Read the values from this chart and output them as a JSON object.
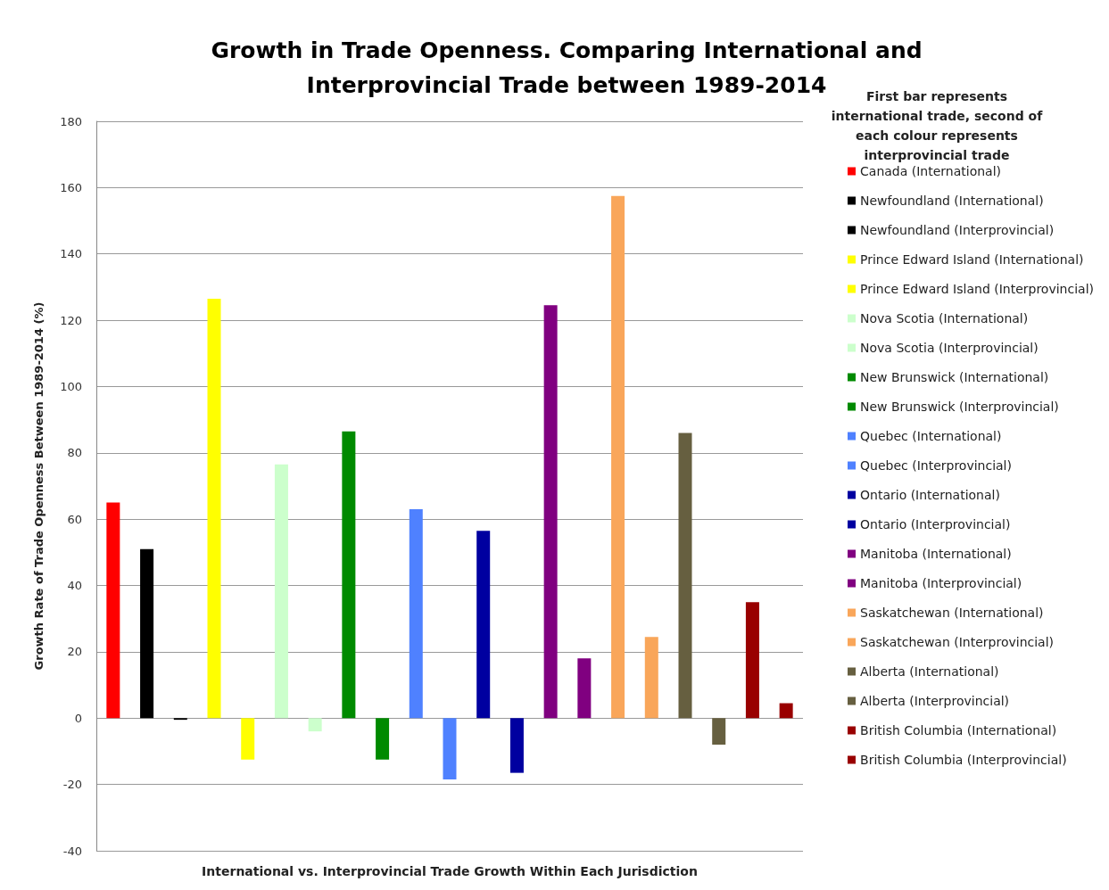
{
  "chart_data": {
    "type": "bar",
    "title": "Growth in Trade Openness. Comparing International and\nInterprovincial Trade between 1989-2014",
    "xlabel": "International vs. Interprovincial Trade Growth Within Each Jurisdiction",
    "ylabel": "Growth Rate of Trade Openness Between 1989-2014 (%)",
    "legend_title": "First bar represents\ninternational trade, second of\neach colour represents\ninterprovincial trade",
    "categories": [
      null,
      null,
      null,
      null,
      null,
      null,
      null,
      null,
      null,
      null,
      null,
      null,
      null,
      null,
      null,
      null,
      null,
      null,
      null,
      null,
      null
    ],
    "series": [
      {
        "name": "Canada (International)",
        "color": "#ff0000",
        "values": [
          65,
          null,
          null,
          null,
          null,
          null,
          null,
          null,
          null,
          null,
          null,
          null,
          null,
          null,
          null,
          null,
          null,
          null,
          null,
          null,
          null
        ]
      },
      {
        "name": "Newfoundland (International)",
        "color": "#000000",
        "values": [
          null,
          51,
          null,
          null,
          null,
          null,
          null,
          null,
          null,
          null,
          null,
          null,
          null,
          null,
          null,
          null,
          null,
          null,
          null,
          null,
          null
        ]
      },
      {
        "name": "Newfoundland (Interprovincial)",
        "color": "#000000",
        "values": [
          null,
          null,
          -0.5,
          null,
          null,
          null,
          null,
          null,
          null,
          null,
          null,
          null,
          null,
          null,
          null,
          null,
          null,
          null,
          null,
          null,
          null
        ]
      },
      {
        "name": "Prince Edward Island (International)",
        "color": "#ffff00",
        "values": [
          null,
          null,
          null,
          126.5,
          null,
          null,
          null,
          null,
          null,
          null,
          null,
          null,
          null,
          null,
          null,
          null,
          null,
          null,
          null,
          null,
          null
        ]
      },
      {
        "name": "Prince Edward Island (Interprovincial)",
        "color": "#ffff00",
        "values": [
          null,
          null,
          null,
          null,
          -12.5,
          null,
          null,
          null,
          null,
          null,
          null,
          null,
          null,
          null,
          null,
          null,
          null,
          null,
          null,
          null,
          null
        ]
      },
      {
        "name": "Nova Scotia (International)",
        "color": "#ccffcc",
        "values": [
          null,
          null,
          null,
          null,
          null,
          76.5,
          null,
          null,
          null,
          null,
          null,
          null,
          null,
          null,
          null,
          null,
          null,
          null,
          null,
          null,
          null
        ]
      },
      {
        "name": "Nova Scotia (Interprovincial)",
        "color": "#ccffcc",
        "values": [
          null,
          null,
          null,
          null,
          null,
          null,
          -4,
          null,
          null,
          null,
          null,
          null,
          null,
          null,
          null,
          null,
          null,
          null,
          null,
          null,
          null
        ]
      },
      {
        "name": "New Brunswick (International)",
        "color": "#008a00",
        "values": [
          null,
          null,
          null,
          null,
          null,
          null,
          null,
          86.5,
          null,
          null,
          null,
          null,
          null,
          null,
          null,
          null,
          null,
          null,
          null,
          null,
          null
        ]
      },
      {
        "name": "New Brunswick (Interprovincial)",
        "color": "#008a00",
        "values": [
          null,
          null,
          null,
          null,
          null,
          null,
          null,
          null,
          -12.5,
          null,
          null,
          null,
          null,
          null,
          null,
          null,
          null,
          null,
          null,
          null,
          null
        ]
      },
      {
        "name": "Quebec (International)",
        "color": "#4f81ff",
        "values": [
          null,
          null,
          null,
          null,
          null,
          null,
          null,
          null,
          null,
          63,
          null,
          null,
          null,
          null,
          null,
          null,
          null,
          null,
          null,
          null,
          null
        ]
      },
      {
        "name": "Quebec (Interprovincial)",
        "color": "#4f81ff",
        "values": [
          null,
          null,
          null,
          null,
          null,
          null,
          null,
          null,
          null,
          null,
          -18.5,
          null,
          null,
          null,
          null,
          null,
          null,
          null,
          null,
          null,
          null
        ]
      },
      {
        "name": "Ontario (International)",
        "color": "#0000a0",
        "values": [
          null,
          null,
          null,
          null,
          null,
          null,
          null,
          null,
          null,
          null,
          null,
          56.5,
          null,
          null,
          null,
          null,
          null,
          null,
          null,
          null,
          null
        ]
      },
      {
        "name": "Ontario (Interprovincial)",
        "color": "#0000a0",
        "values": [
          null,
          null,
          null,
          null,
          null,
          null,
          null,
          null,
          null,
          null,
          null,
          null,
          -16.5,
          null,
          null,
          null,
          null,
          null,
          null,
          null,
          null
        ]
      },
      {
        "name": "Manitoba (International)",
        "color": "#800080",
        "values": [
          null,
          null,
          null,
          null,
          null,
          null,
          null,
          null,
          null,
          null,
          null,
          null,
          null,
          124.5,
          null,
          null,
          null,
          null,
          null,
          null,
          null
        ]
      },
      {
        "name": "Manitoba (Interprovincial)",
        "color": "#800080",
        "values": [
          null,
          null,
          null,
          null,
          null,
          null,
          null,
          null,
          null,
          null,
          null,
          null,
          null,
          null,
          18,
          null,
          null,
          null,
          null,
          null,
          null
        ]
      },
      {
        "name": "Saskatchewan (International)",
        "color": "#f9a65a",
        "values": [
          null,
          null,
          null,
          null,
          null,
          null,
          null,
          null,
          null,
          null,
          null,
          null,
          null,
          null,
          null,
          157.5,
          null,
          null,
          null,
          null,
          null
        ]
      },
      {
        "name": "Saskatchewan (Interprovincial)",
        "color": "#f9a65a",
        "values": [
          null,
          null,
          null,
          null,
          null,
          null,
          null,
          null,
          null,
          null,
          null,
          null,
          null,
          null,
          null,
          null,
          24.5,
          null,
          null,
          null,
          null
        ]
      },
      {
        "name": "Alberta (International)",
        "color": "#665f40",
        "values": [
          null,
          null,
          null,
          null,
          null,
          null,
          null,
          null,
          null,
          null,
          null,
          null,
          null,
          null,
          null,
          null,
          null,
          86,
          null,
          null,
          null
        ]
      },
      {
        "name": "Alberta (Interprovincial)",
        "color": "#665f40",
        "values": [
          null,
          null,
          null,
          null,
          null,
          null,
          null,
          null,
          null,
          null,
          null,
          null,
          null,
          null,
          null,
          null,
          null,
          null,
          -8,
          null,
          null
        ]
      },
      {
        "name": "British Columbia (International)",
        "color": "#990000",
        "values": [
          null,
          null,
          null,
          null,
          null,
          null,
          null,
          null,
          null,
          null,
          null,
          null,
          null,
          null,
          null,
          null,
          null,
          null,
          null,
          35,
          null
        ]
      },
      {
        "name": "British Columbia (Interprovincial)",
        "color": "#990000",
        "values": [
          null,
          null,
          null,
          null,
          null,
          null,
          null,
          null,
          null,
          null,
          null,
          null,
          null,
          null,
          null,
          null,
          null,
          null,
          null,
          null,
          4.5
        ]
      }
    ],
    "ylim": [
      -40,
      180
    ],
    "yticks": [
      -40,
      -20,
      0,
      20,
      40,
      60,
      80,
      100,
      120,
      140,
      160,
      180
    ],
    "grid": "y",
    "legend": "right"
  }
}
